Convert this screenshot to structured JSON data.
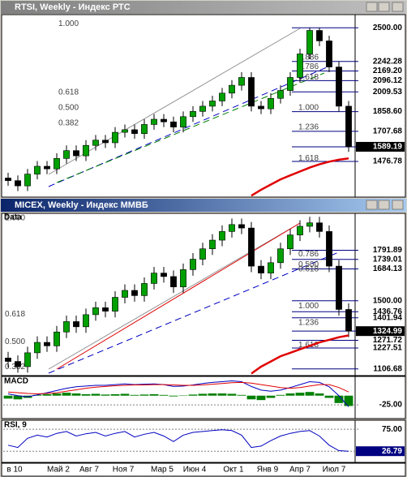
{
  "chart_data": [
    {
      "type": "candlestick",
      "title": "RTSI, Weekly - Индекс РТС",
      "open": [
        1350,
        1330,
        1290,
        1380,
        1440,
        1420,
        1500,
        1560,
        1520,
        1600,
        1640,
        1620,
        1700,
        1720,
        1690,
        1760,
        1800,
        1780,
        1740,
        1820,
        1860,
        1900,
        1940,
        2000,
        2060,
        2120,
        1900,
        1880,
        1960,
        2020,
        2120,
        2300,
        2480,
        2400,
        2200,
        1900
      ],
      "high": [
        1390,
        1370,
        1420,
        1480,
        1480,
        1540,
        1600,
        1600,
        1640,
        1680,
        1680,
        1740,
        1760,
        1760,
        1800,
        1840,
        1840,
        1820,
        1860,
        1900,
        1940,
        1980,
        2040,
        2100,
        2160,
        2160,
        1940,
        2000,
        2060,
        2160,
        2340,
        2500,
        2500,
        2440,
        2240,
        1940
      ],
      "low": [
        1290,
        1250,
        1250,
        1340,
        1380,
        1380,
        1460,
        1480,
        1480,
        1560,
        1580,
        1580,
        1660,
        1650,
        1650,
        1720,
        1740,
        1700,
        1700,
        1780,
        1820,
        1860,
        1900,
        1960,
        2020,
        1860,
        1840,
        1840,
        1920,
        1980,
        2080,
        2260,
        2360,
        2160,
        1860,
        1550
      ],
      "close": [
        1330,
        1290,
        1380,
        1440,
        1420,
        1500,
        1560,
        1520,
        1600,
        1640,
        1620,
        1700,
        1720,
        1690,
        1760,
        1800,
        1780,
        1740,
        1820,
        1860,
        1900,
        1940,
        2000,
        2060,
        2120,
        1900,
        1880,
        1960,
        2020,
        2120,
        2300,
        2480,
        2400,
        2200,
        1900,
        1589.19
      ],
      "ma": [
        null,
        null,
        null,
        null,
        null,
        null,
        null,
        null,
        null,
        null,
        null,
        null,
        null,
        null,
        null,
        null,
        null,
        null,
        null,
        null,
        null,
        null,
        null,
        null,
        null,
        1215,
        1260,
        1300,
        1340,
        1370,
        1400,
        1430,
        1455,
        1475,
        1490,
        1500
      ],
      "ma_color": "#e00000",
      "up_color": "#00a000",
      "down_color": "#000000",
      "ylim": [
        1210,
        2595
      ],
      "yticks": [
        {
          "value": 2500,
          "label": "2500.00"
        },
        2242.28,
        {
          "value": 2169.2,
          "label": "2169.20"
        },
        2096.12,
        2009.53,
        {
          "value": 1858.6,
          "label": "1858.60"
        },
        1707.68,
        1589.19,
        1476.78
      ],
      "levels": [
        {
          "label": "1.000",
          "value": 2500
        },
        {
          "label": "0.886",
          "value": 2242
        },
        {
          "label": "0.786",
          "value": 2169
        },
        {
          "label": "0.618",
          "value": 2090
        },
        {
          "label": "0.618",
          "value": 1975
        },
        {
          "label": "0.500",
          "value": 1858
        },
        {
          "label": "1.000",
          "value": 1858
        },
        {
          "label": "0.382",
          "value": 1740
        },
        {
          "label": "1.236",
          "value": 1707
        },
        {
          "label": "1.618",
          "value": 1470
        }
      ]
    },
    {
      "type": "candlestick",
      "title": "MICEX, Weekly - Индекс ММВБ",
      "label": "Data",
      "open": [
        1170,
        1150,
        1120,
        1200,
        1260,
        1240,
        1320,
        1380,
        1350,
        1420,
        1460,
        1440,
        1520,
        1560,
        1530,
        1600,
        1660,
        1640,
        1580,
        1680,
        1740,
        1800,
        1850,
        1900,
        1940,
        1920,
        1700,
        1660,
        1720,
        1800,
        1880,
        1930,
        1950,
        1900,
        1700,
        1450
      ],
      "high": [
        1205,
        1185,
        1235,
        1295,
        1295,
        1355,
        1415,
        1415,
        1455,
        1495,
        1495,
        1555,
        1595,
        1595,
        1635,
        1695,
        1695,
        1675,
        1715,
        1775,
        1835,
        1885,
        1935,
        1975,
        1975,
        1955,
        1735,
        1755,
        1835,
        1915,
        1965,
        1985,
        1985,
        1935,
        1735,
        1485
      ],
      "low": [
        1115,
        1085,
        1085,
        1165,
        1205,
        1205,
        1285,
        1315,
        1315,
        1385,
        1405,
        1405,
        1485,
        1495,
        1495,
        1565,
        1605,
        1545,
        1545,
        1645,
        1705,
        1765,
        1815,
        1865,
        1885,
        1665,
        1625,
        1625,
        1685,
        1765,
        1845,
        1895,
        1865,
        1665,
        1415,
        1290
      ],
      "close": [
        1150,
        1120,
        1200,
        1260,
        1240,
        1320,
        1380,
        1350,
        1420,
        1460,
        1440,
        1520,
        1560,
        1530,
        1600,
        1660,
        1640,
        1580,
        1680,
        1740,
        1800,
        1850,
        1900,
        1940,
        1920,
        1700,
        1660,
        1720,
        1800,
        1880,
        1930,
        1950,
        1900,
        1700,
        1450,
        1324.99
      ],
      "ma": [
        null,
        null,
        null,
        null,
        null,
        null,
        null,
        null,
        null,
        null,
        null,
        null,
        null,
        null,
        null,
        null,
        null,
        null,
        null,
        null,
        null,
        null,
        null,
        null,
        null,
        1080,
        1120,
        1150,
        1180,
        1200,
        1220,
        1240,
        1260,
        1275,
        1290,
        1300
      ],
      "ma_color": "#e00000",
      "up_color": "#00a000",
      "down_color": "#000000",
      "ylim": [
        1073,
        2000
      ],
      "yticks": [
        1791.89,
        1739.01,
        1684.13,
        {
          "value": 1500,
          "label": "1500.00"
        },
        1436.76,
        1401.94,
        1324.99,
        1271.72,
        1227.51,
        1106.68
      ],
      "levels": [
        {
          "label": "1.000",
          "value": 1955
        },
        {
          "label": "0.786",
          "value": 1745
        },
        {
          "label": "0.500",
          "value": 1684
        },
        {
          "label": "0.618",
          "value": 1660
        },
        {
          "label": "1.000",
          "value": 1445
        },
        {
          "label": "0.618",
          "value": 1400
        },
        {
          "label": "1.236",
          "value": 1350
        },
        {
          "label": "0.500",
          "value": 1240
        },
        {
          "label": "1.618",
          "value": 1222
        },
        {
          "label": "0.382",
          "value": 1095
        }
      ]
    },
    {
      "type": "macd",
      "title": "MACD",
      "histogram": [
        -8,
        -10,
        -6,
        2,
        4,
        6,
        8,
        6,
        4,
        5,
        3,
        4,
        5,
        2,
        3,
        4,
        2,
        -2,
        1,
        3,
        5,
        6,
        6,
        5,
        2,
        -10,
        -12,
        -6,
        2,
        6,
        8,
        10,
        6,
        -6,
        -20,
        -28
      ],
      "macd": [
        5,
        0,
        -3,
        2,
        8,
        14,
        20,
        24,
        26,
        28,
        28,
        30,
        32,
        30,
        31,
        32,
        30,
        25,
        26,
        29,
        33,
        36,
        38,
        40,
        38,
        25,
        15,
        12,
        15,
        22,
        30,
        38,
        36,
        24,
        0,
        -30
      ],
      "signal": [
        10,
        8,
        6,
        5,
        6,
        8,
        12,
        16,
        20,
        23,
        25,
        27,
        28,
        29,
        29,
        30,
        30,
        29,
        28,
        28,
        29,
        31,
        33,
        35,
        36,
        34,
        30,
        26,
        22,
        20,
        22,
        26,
        30,
        30,
        22,
        10
      ],
      "hist_color": "#008000",
      "macd_color": "#0000c0",
      "signal_color": "#e00000",
      "ylim": [
        -60,
        50
      ],
      "yticks": [
        {
          "value": -25,
          "label": "-25.00"
        }
      ]
    },
    {
      "type": "line",
      "title": "RSI, 9",
      "values": [
        40,
        35,
        55,
        62,
        58,
        66,
        70,
        60,
        65,
        68,
        60,
        66,
        70,
        58,
        64,
        68,
        60,
        48,
        62,
        68,
        70,
        72,
        74,
        72,
        62,
        35,
        38,
        50,
        60,
        66,
        70,
        72,
        60,
        40,
        28,
        26.79
      ],
      "color": "#0000c0",
      "ylim": [
        4,
        93
      ],
      "yticks": [
        {
          "value": 75,
          "label": "75.00"
        },
        26.79
      ]
    }
  ],
  "x_axis_labels": [
    "в 10",
    "Май 2",
    "Авг 7",
    "Ноя 7",
    "Мар 5",
    "Июн 4",
    "Окт 1",
    "Янв 9",
    "Апр 7",
    "Июл 7"
  ]
}
